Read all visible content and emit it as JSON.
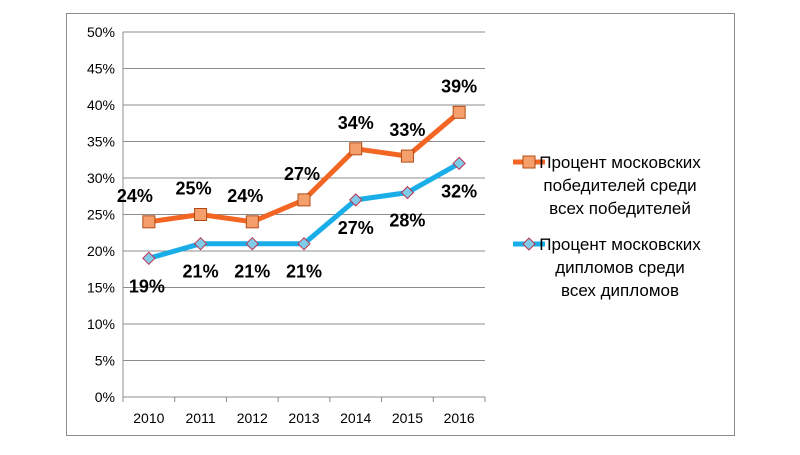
{
  "chart_data": {
    "type": "line",
    "categories": [
      "2010",
      "2011",
      "2012",
      "2013",
      "2014",
      "2015",
      "2016"
    ],
    "ylim": [
      0,
      50
    ],
    "y_ticks": [
      0,
      5,
      10,
      15,
      20,
      25,
      30,
      35,
      40,
      45,
      50
    ],
    "y_tick_suffix": "%",
    "grid": "horizontal",
    "legend_position": "right",
    "series": [
      {
        "name": "Процент московских победителей среди всех победителей",
        "legend_lines": [
          "Процент московских",
          "победителей среди",
          "всех победителей"
        ],
        "values": [
          24,
          25,
          24,
          27,
          34,
          33,
          39
        ],
        "data_labels": [
          "24%",
          "25%",
          "24%",
          "27%",
          "34%",
          "33%",
          "39%"
        ],
        "color": "#f26522",
        "marker": "square",
        "marker_fill": "#f5a06c",
        "label_position": "above"
      },
      {
        "name": "Процент московских дипломов среди всех дипломов",
        "legend_lines": [
          "Процент московских",
          "дипломов среди",
          "всех дипломов"
        ],
        "values": [
          19,
          21,
          21,
          21,
          27,
          28,
          32
        ],
        "data_labels": [
          "19%",
          "21%",
          "21%",
          "21%",
          "27%",
          "28%",
          "32%"
        ],
        "color": "#1aaee8",
        "marker": "diamond",
        "marker_fill": "#7fcbe8",
        "label_position": "below"
      }
    ]
  }
}
